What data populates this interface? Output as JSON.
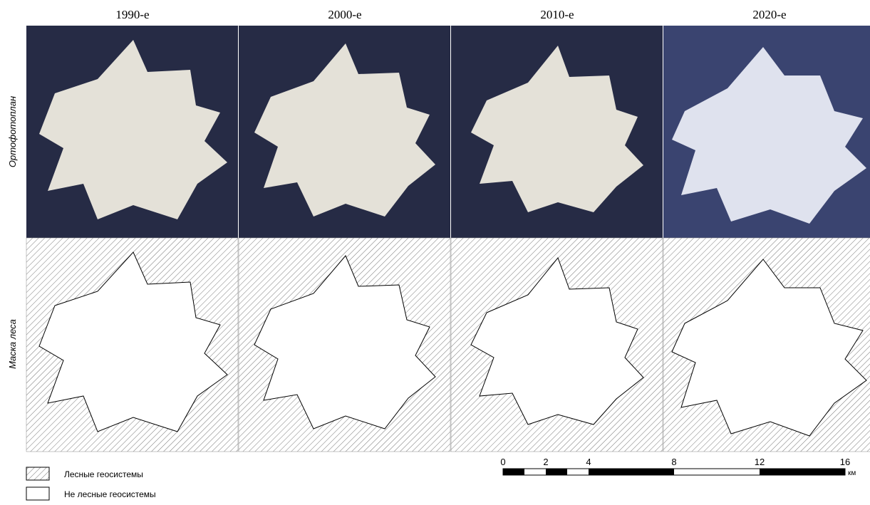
{
  "headers": [
    "1990-е",
    "2000-е",
    "2010-е",
    "2020-е"
  ],
  "row_labels": [
    "Ортофотоплан",
    "Маска леса"
  ],
  "legend": [
    "Лесные геосистемы",
    "Не лесные геосистемы"
  ],
  "scale": {
    "ticks": [
      0,
      2,
      4,
      8,
      12,
      16
    ],
    "unit": "км"
  }
}
